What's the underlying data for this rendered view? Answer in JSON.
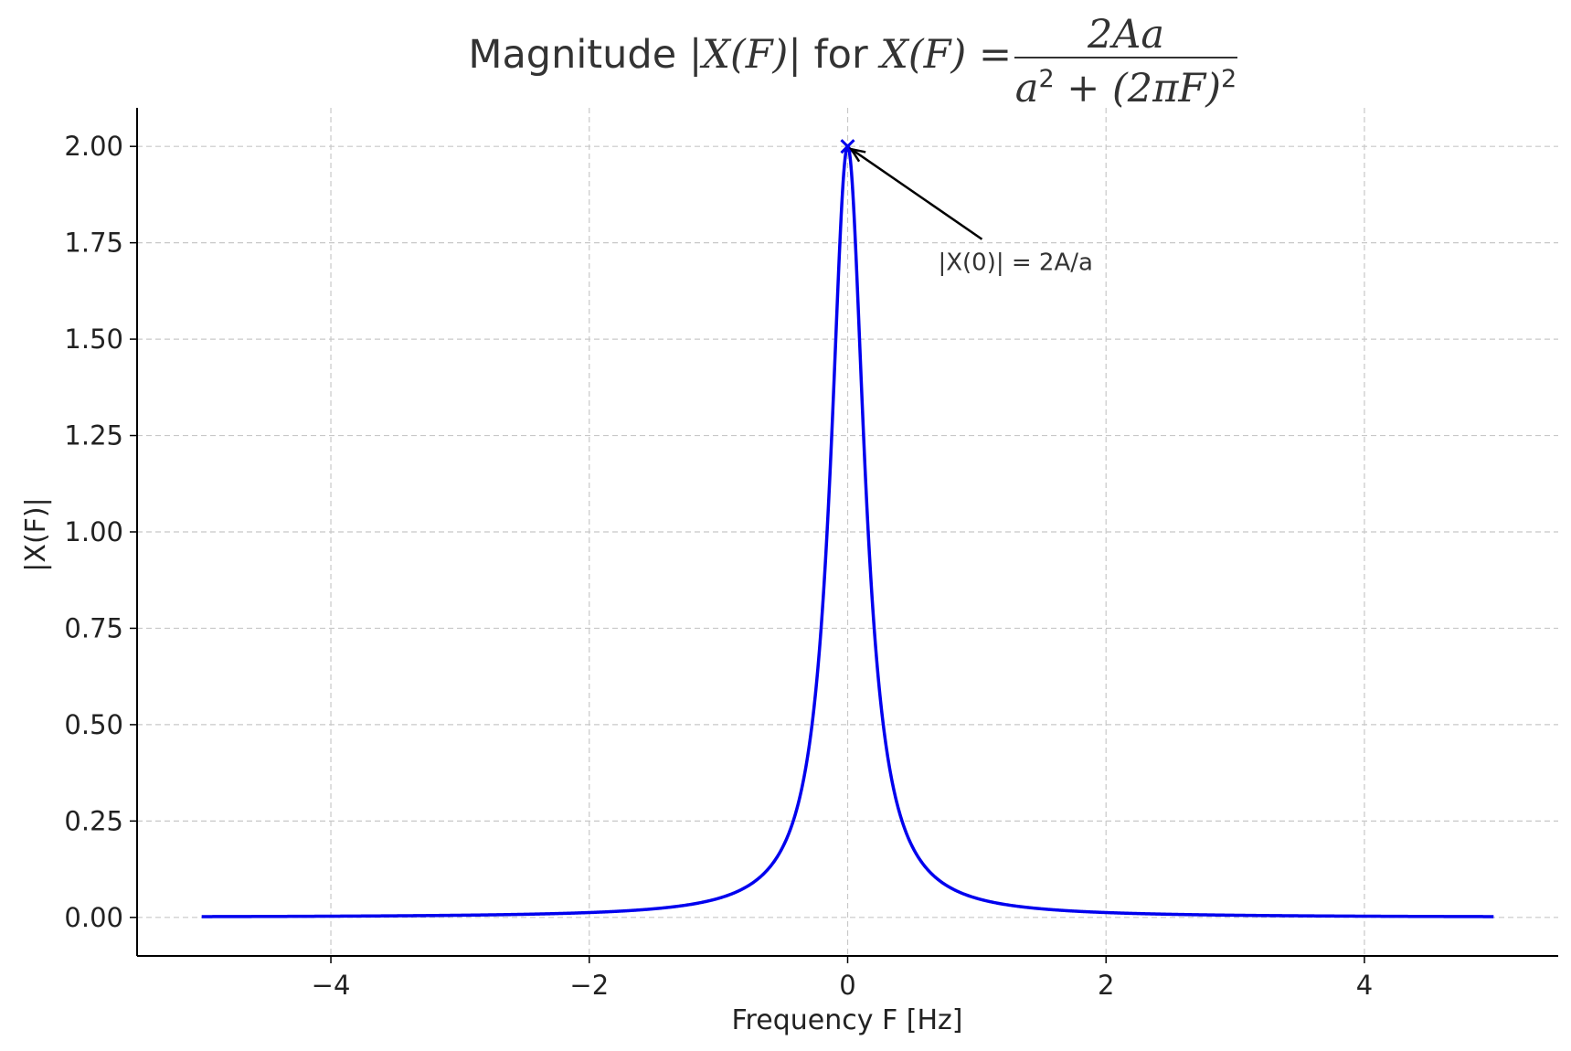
{
  "chart_data": {
    "type": "line",
    "title": {
      "prefix": "Magnitude ",
      "abs_expr": "|X(F)|",
      "connector": " for ",
      "lhs": "X(F) =",
      "numerator": "2Aa",
      "denominator_base1": "a",
      "sup1": "2",
      "denominator_mid": " + (2πF)",
      "sup2": "2"
    },
    "xlabel": "Frequency F [Hz]",
    "ylabel": "|X(F)|",
    "xlim": [
      -5.5,
      5.5
    ],
    "ylim": [
      -0.1,
      2.1
    ],
    "x_ticks": [
      -4,
      -2,
      0,
      2,
      4
    ],
    "x_tick_labels": [
      "−4",
      "−2",
      "0",
      "2",
      "4"
    ],
    "y_ticks": [
      0,
      0.25,
      0.5,
      0.75,
      1.0,
      1.25,
      1.5,
      1.75,
      2.0
    ],
    "y_tick_labels": [
      "0.00",
      "0.25",
      "0.50",
      "0.75",
      "1.00",
      "1.25",
      "1.50",
      "1.75",
      "2.00"
    ],
    "grid": true,
    "series": [
      {
        "color": "#0000ee",
        "x_range": [
          -5,
          5
        ],
        "A": 1,
        "a": 1,
        "x": [
          -5,
          -4,
          -3,
          -2,
          -1.5,
          -1,
          -0.75,
          -0.5,
          -0.3,
          -0.2,
          -0.1,
          -0.05,
          0,
          0.05,
          0.1,
          0.2,
          0.3,
          0.5,
          0.75,
          1,
          1.5,
          2,
          3,
          4,
          5
        ],
        "y": [
          0.002,
          0.003,
          0.006,
          0.013,
          0.022,
          0.049,
          0.085,
          0.184,
          0.439,
          0.775,
          1.434,
          1.821,
          2.0,
          1.821,
          1.434,
          0.775,
          0.439,
          0.184,
          0.085,
          0.049,
          0.022,
          0.013,
          0.006,
          0.003,
          0.002
        ]
      }
    ],
    "peak_marker": {
      "x": 0,
      "y": 2.0,
      "symbol": "x",
      "color": "#0000ee"
    },
    "annotation": {
      "text": "|X(0)| = 2A/a",
      "point": [
        0,
        2.0
      ],
      "text_pos": [
        0.7,
        1.7
      ]
    }
  }
}
